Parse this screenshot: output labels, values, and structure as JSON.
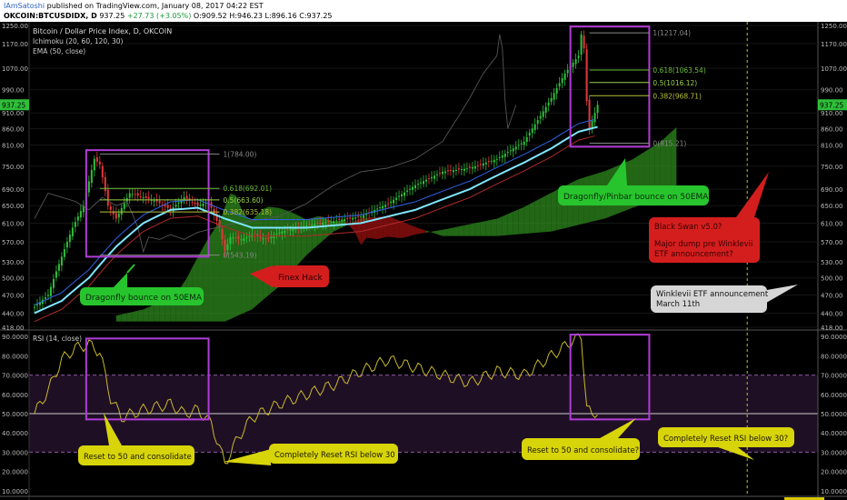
{
  "header": {
    "author": "IAmSatoshi",
    "published": "published on TradingView.com, January 08, 2017 04:22 EST",
    "symbol": "OKCOIN:BTCUSDIDX, D",
    "last": "937.25",
    "change": "+27.73 (+3.05%)",
    "ohlc": "O:909.52 H:946.23 L:896.16 C:937.25"
  },
  "colors": {
    "background": "#000000",
    "candle_up": "#2fbf3a",
    "candle_down": "#e23a3a",
    "ema": "#7fe6ff",
    "kumo_bull": "#2d8a1e",
    "kumo_bear": "#9b1010",
    "rsi": "#c8b82a",
    "box": "#b13dd6",
    "fib": "#8fd14a"
  },
  "chart_data": [
    {
      "type": "candlestick",
      "title": "Bitcoin / Dollar Price Index, D, OKCOIN",
      "indicators": [
        "Ichimoku (20, 60, 120, 30)",
        "EMA (50, close)"
      ],
      "y_ticks": [
        1250,
        1170,
        1070,
        990,
        910,
        860,
        810,
        750,
        690,
        650,
        610,
        570,
        530,
        500,
        470,
        440,
        418
      ],
      "ylim": [
        418,
        1250
      ],
      "y_scale": "log",
      "last_price_label": "937.25",
      "x_labels": [
        "Jun",
        "15",
        "Jul",
        "18",
        "Aug",
        "15",
        "Sep",
        "15",
        "Oct",
        "17",
        "Nov",
        "15",
        "Dec",
        "15",
        "2017",
        "16",
        "Feb",
        "15",
        "Mar",
        "2017-03-11"
      ],
      "price_path": [
        [
          0,
          450
        ],
        [
          5,
          470
        ],
        [
          10,
          540
        ],
        [
          14,
          600
        ],
        [
          18,
          650
        ],
        [
          20,
          710
        ],
        [
          22,
          770
        ],
        [
          24,
          755
        ],
        [
          27,
          650
        ],
        [
          30,
          620
        ],
        [
          35,
          680
        ],
        [
          40,
          670
        ],
        [
          45,
          660
        ],
        [
          50,
          640
        ],
        [
          55,
          670
        ],
        [
          60,
          650
        ],
        [
          64,
          660
        ],
        [
          68,
          600
        ],
        [
          70,
          550
        ],
        [
          72,
          580
        ],
        [
          76,
          575
        ],
        [
          80,
          585
        ],
        [
          85,
          575
        ],
        [
          90,
          590
        ],
        [
          100,
          605
        ],
        [
          110,
          615
        ],
        [
          120,
          625
        ],
        [
          130,
          655
        ],
        [
          140,
          700
        ],
        [
          150,
          735
        ],
        [
          160,
          745
        ],
        [
          170,
          770
        ],
        [
          180,
          820
        ],
        [
          186,
          900
        ],
        [
          190,
          960
        ],
        [
          195,
          1050
        ],
        [
          200,
          1120
        ],
        [
          201,
          1210
        ],
        [
          202,
          1150
        ],
        [
          203,
          950
        ],
        [
          204,
          860
        ],
        [
          206,
          910
        ],
        [
          207,
          937
        ]
      ],
      "ema50_path": [
        [
          0,
          440
        ],
        [
          10,
          460
        ],
        [
          20,
          500
        ],
        [
          30,
          560
        ],
        [
          40,
          610
        ],
        [
          50,
          640
        ],
        [
          60,
          645
        ],
        [
          70,
          620
        ],
        [
          80,
          600
        ],
        [
          100,
          600
        ],
        [
          120,
          610
        ],
        [
          140,
          640
        ],
        [
          160,
          690
        ],
        [
          180,
          760
        ],
        [
          190,
          800
        ],
        [
          200,
          850
        ],
        [
          207,
          865
        ]
      ],
      "fib_retracement_1": [
        {
          "label": "1(784.00)",
          "value": 784
        },
        {
          "label": "0.618(692.01)",
          "value": 692.01
        },
        {
          "label": "0.5(663.60)",
          "value": 663.6
        },
        {
          "label": "0.382(635.18)",
          "value": 635.18
        },
        {
          "label": "0(543.19)",
          "value": 543.19
        }
      ],
      "fib_retracement_2": [
        {
          "label": "1(1217.04)",
          "value": 1217.04
        },
        {
          "label": "0.618(1063.54)",
          "value": 1063.54
        },
        {
          "label": "0.5(1016.12)",
          "value": 1016.12
        },
        {
          "label": "0.382(968.71)",
          "value": 968.71
        },
        {
          "label": "0(815.21)",
          "value": 815.21
        }
      ]
    },
    {
      "type": "line",
      "title": "RSI (14, close)",
      "y_ticks": [
        "90.0000",
        "80.0000",
        "70.0000",
        "60.0000",
        "50.0000",
        "40.0000",
        "30.0000",
        "20.0000",
        "10.0000"
      ],
      "ylim": [
        8,
        92
      ],
      "band": [
        30,
        70
      ],
      "rsi_path": [
        [
          0,
          50
        ],
        [
          5,
          62
        ],
        [
          10,
          78
        ],
        [
          15,
          84
        ],
        [
          20,
          86
        ],
        [
          24,
          82
        ],
        [
          28,
          58
        ],
        [
          32,
          48
        ],
        [
          40,
          52
        ],
        [
          50,
          55
        ],
        [
          55,
          50
        ],
        [
          60,
          52
        ],
        [
          65,
          45
        ],
        [
          70,
          24
        ],
        [
          75,
          38
        ],
        [
          80,
          48
        ],
        [
          90,
          55
        ],
        [
          100,
          60
        ],
        [
          110,
          65
        ],
        [
          120,
          72
        ],
        [
          130,
          78
        ],
        [
          140,
          74
        ],
        [
          150,
          70
        ],
        [
          160,
          66
        ],
        [
          170,
          72
        ],
        [
          180,
          70
        ],
        [
          190,
          80
        ],
        [
          198,
          88
        ],
        [
          201,
          90
        ],
        [
          203,
          54
        ],
        [
          205,
          48
        ],
        [
          207,
          52
        ]
      ]
    }
  ],
  "annotations": {
    "dragonfly1": "Dragonfly bounce on 50EMA",
    "finex": "Finex Hack",
    "dragonfly2": "Dragonfly/Pinbar bounce on 50EMA",
    "blackswan1": "Black Swan v5.0?",
    "blackswan2": "Major dump pre Winklevii",
    "blackswan3": "ETF announcement?",
    "winklevii1": "Winklevii ETF announcement",
    "winklevii2": "March 11th",
    "rsi_a": "Reset to 50 and consolidate",
    "rsi_b": "Completely Reset RSI below 30",
    "rsi_c": "Reset to 50 and consolidate?",
    "rsi_d": "Completely Reset RSI below 30?"
  }
}
